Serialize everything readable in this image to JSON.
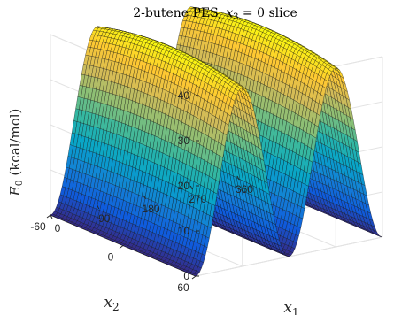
{
  "chart_data": {
    "type": "surface",
    "title_text": "2-butene PES, ",
    "title_var": "x",
    "title_sub": "3",
    "title_rest": " = 0 slice",
    "xlabel_var": "x",
    "xlabel_sub": "1",
    "ylabel_var": "x",
    "ylabel_sub": "2",
    "zlabel_var": "E",
    "zlabel_sub": "0",
    "zlabel_rest": " (kcal/mol)",
    "xlim": [
      0,
      360
    ],
    "ylim": [
      -60,
      60
    ],
    "zlim": [
      0,
      40
    ],
    "x_ticks": [
      0,
      90,
      180,
      270,
      360
    ],
    "x_tick_labels": [
      "0",
      "90",
      "180",
      "270",
      "360"
    ],
    "y_ticks": [
      -60,
      0,
      60
    ],
    "y_tick_labels": [
      "-60",
      "0",
      "60"
    ],
    "z_ticks": [
      0,
      10,
      20,
      30,
      40
    ],
    "z_tick_labels": [
      "0",
      "10",
      "20",
      "30",
      "40"
    ],
    "grid": true,
    "colormap": "parula",
    "colormap_stops": [
      "#352a87",
      "#0f5cdd",
      "#1481d6",
      "#06a4ca",
      "#2eb7a4",
      "#87bf77",
      "#d1bb59",
      "#fec832",
      "#f9fb0e"
    ],
    "surface_model": {
      "x1_barrier_peaks": [
        90,
        270
      ],
      "x1_minima": [
        0,
        180,
        360
      ],
      "max_energy_at_x2_zero": 42,
      "max_energy_at_x2_edges": 30,
      "x2_quadratic_coefficient": 0.00065
    },
    "sampled_grid": {
      "x1_samples": [
        0,
        45,
        90,
        135,
        180,
        225,
        270,
        315,
        360
      ],
      "x2_samples": [
        -60,
        -30,
        0,
        30,
        60
      ],
      "E0": [
        [
          0.0,
          14.8,
          29.6,
          14.8,
          0.0,
          14.8,
          29.6,
          14.8,
          0.0
        ],
        [
          0.0,
          19.4,
          38.8,
          19.4,
          0.0,
          19.4,
          38.8,
          19.4,
          0.0
        ],
        [
          0.0,
          21.0,
          42.0,
          21.0,
          0.0,
          21.0,
          42.0,
          21.0,
          0.0
        ],
        [
          0.0,
          19.4,
          38.8,
          19.4,
          0.0,
          19.4,
          38.8,
          19.4,
          0.0
        ],
        [
          0.0,
          14.8,
          29.6,
          14.8,
          0.0,
          14.8,
          29.6,
          14.8,
          0.0
        ]
      ]
    }
  }
}
